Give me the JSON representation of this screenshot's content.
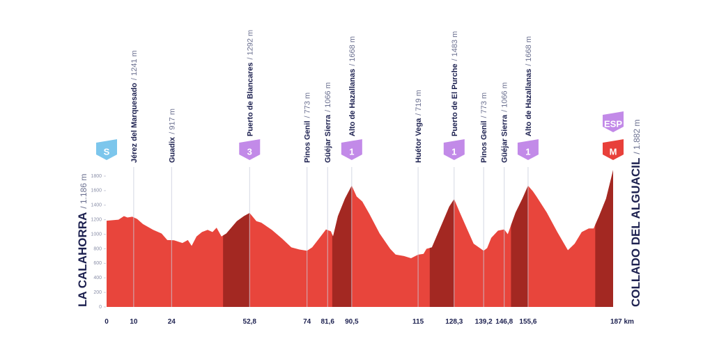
{
  "chart_data": {
    "type": "area",
    "x": [
      0,
      4.4,
      6.4,
      7.7,
      9.5,
      11.3,
      13.4,
      17.2,
      20.3,
      22.4,
      24.9,
      28,
      30,
      31.4,
      33.2,
      35.2,
      37.3,
      39.1,
      40.6,
      42.4,
      44.2,
      48.1,
      50.7,
      52.8,
      55.3,
      57.1,
      61,
      64.8,
      68.2,
      71.2,
      74,
      75.9,
      78.4,
      81,
      82.8,
      83.6,
      85.4,
      88,
      90.5,
      92.3,
      94.4,
      97,
      100.8,
      104.7,
      106.7,
      109.8,
      112.4,
      115,
      117,
      118.1,
      120.1,
      124,
      126.5,
      128.3,
      130.4,
      133,
      135.5,
      139.2,
      140.5,
      142,
      144.5,
      146.8,
      148.1,
      151,
      153.5,
      155.6,
      157.4,
      158.7,
      162.5,
      166.4,
      170.3,
      172.8,
      175.4,
      178,
      179.8,
      181.8,
      184.4,
      187
    ],
    "values": [
      1186,
      1200,
      1250,
      1230,
      1241,
      1210,
      1140,
      1060,
      1010,
      920,
      917,
      880,
      920,
      840,
      970,
      1030,
      1060,
      1030,
      1090,
      970,
      1010,
      1180,
      1250,
      1292,
      1180,
      1160,
      1060,
      940,
      820,
      790,
      773,
      820,
      940,
      1066,
      1040,
      970,
      1250,
      1490,
      1668,
      1520,
      1450,
      1280,
      1010,
      800,
      720,
      700,
      670,
      719,
      730,
      800,
      820,
      1160,
      1380,
      1483,
      1300,
      1080,
      870,
      773,
      810,
      950,
      1050,
      1066,
      1000,
      1300,
      1490,
      1668,
      1590,
      1520,
      1300,
      1030,
      780,
      870,
      1030,
      1080,
      1080,
      1250,
      1490,
      1882
    ],
    "color": "#e8453c",
    "climb_color": "#a32822",
    "climbs": [
      {
        "from": 43,
        "to": 52.8
      },
      {
        "from": 83.3,
        "to": 90.5
      },
      {
        "from": 119.3,
        "to": 128.3
      },
      {
        "from": 149.3,
        "to": 155.6
      },
      {
        "from": 180.4,
        "to": 187
      }
    ],
    "xlim": [
      0,
      187
    ],
    "ylim": [
      0,
      1800
    ],
    "yticks": [
      0,
      200,
      400,
      600,
      800,
      1000,
      1200,
      1400,
      1600,
      1800
    ],
    "xticks": [
      0,
      10,
      24,
      {
        "value": 52.8,
        "label": "52,8"
      },
      74,
      {
        "value": 81.6,
        "label": "81,6"
      },
      {
        "value": 90.5,
        "label": "90,5"
      },
      115,
      {
        "value": 128.3,
        "label": "128,3"
      },
      {
        "value": 139.2,
        "label": "139,2"
      },
      {
        "value": 146.8,
        "label": "146,8"
      },
      {
        "value": 155.6,
        "label": "155,6"
      },
      {
        "value": 187,
        "label": "187 km"
      }
    ],
    "start": {
      "name": "LA CALAHORRA",
      "altitude": "/ 1.186 m"
    },
    "finish": {
      "name": "COLLADO DEL ALGUACIL",
      "altitude": "/ 1.882 m"
    },
    "waypoints": [
      {
        "km": 10,
        "name": "Jérez del Marquesado",
        "altitude": "/ 1241 m"
      },
      {
        "km": 24,
        "name": "Guadix",
        "altitude": "/ 917 m"
      },
      {
        "km": 52.8,
        "name": "Puerto de Blancares",
        "altitude": "/ 1292 m",
        "badge": true
      },
      {
        "km": 74,
        "name": "Pinos Genil",
        "altitude": "/ 773 m"
      },
      {
        "km": 81.6,
        "name": "Güéjar Sierra",
        "altitude": "/ 1066 m"
      },
      {
        "km": 90.5,
        "name": "Alto de Hazallanas",
        "altitude": "/ 1668 m",
        "badge": true
      },
      {
        "km": 115,
        "name": "Huétor Vega",
        "altitude": "/ 719 m"
      },
      {
        "km": 128.3,
        "name": "Puerto de El Purche",
        "altitude": "/ 1483 m",
        "badge": true
      },
      {
        "km": 139.2,
        "name": "Pinos Genil",
        "altitude": "/ 773 m"
      },
      {
        "km": 146.8,
        "name": "Güéjar Sierra",
        "altitude": "/ 1066 m"
      },
      {
        "km": 155.6,
        "name": "Alto de Hazallanas",
        "altitude": "/ 1668 m",
        "badge": true
      }
    ],
    "badges": [
      {
        "km": 0,
        "label": "S",
        "color": "#7cc6ec",
        "row": 1
      },
      {
        "km": 52.8,
        "label": "3",
        "color": "#c28ae8",
        "row": 1
      },
      {
        "km": 90.5,
        "label": "1",
        "color": "#c28ae8",
        "row": 1
      },
      {
        "km": 128.3,
        "label": "1",
        "color": "#c28ae8",
        "row": 1
      },
      {
        "km": 155.6,
        "label": "1",
        "color": "#c28ae8",
        "row": 1
      },
      {
        "km": 187,
        "label": "ESP",
        "color": "#c28ae8",
        "row": 0
      },
      {
        "km": 187,
        "label": "M",
        "color": "#e8403a",
        "row": 1
      }
    ]
  }
}
